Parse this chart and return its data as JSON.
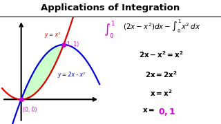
{
  "title": "Applications of Integration",
  "title_fontsize": 9.5,
  "background_color": "#ffffff",
  "curve1_color": "#dd0000",
  "curve2_color": "#0000dd",
  "fill_color": "#aaffaa",
  "fill_alpha": 0.6,
  "point_color": "#cc00cc",
  "label1": "y = x²",
  "label2": "y = 2x - x²",
  "point1_label": "(1, 1)",
  "point2_label": "(0, 0)",
  "text_color": "#000000",
  "magenta_color": "#dd00dd",
  "graph_xlim": [
    -0.5,
    1.9
  ],
  "graph_ylim": [
    -0.45,
    1.5
  ]
}
